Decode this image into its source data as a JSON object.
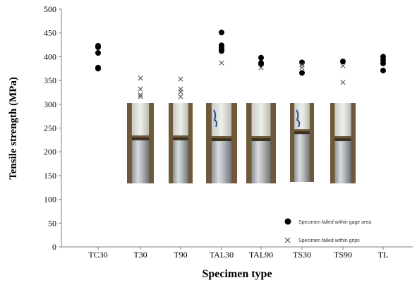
{
  "chart_data": {
    "type": "scatter",
    "xlabel": "Specimen type",
    "ylabel": "Tensile strength (MPa)",
    "ylim": [
      0,
      500
    ],
    "yticks": [
      0,
      50,
      100,
      150,
      200,
      250,
      300,
      350,
      400,
      450,
      500
    ],
    "categories": [
      "TC30",
      "T30",
      "T90",
      "TAL30",
      "TAL90",
      "TS30",
      "TS90",
      "TL"
    ],
    "series": [
      {
        "name": "Specimen failed  within gage area",
        "marker": "circle",
        "color": "#000000",
        "points": [
          {
            "x": "TC30",
            "y": 423
          },
          {
            "x": "TC30",
            "y": 420
          },
          {
            "x": "TC30",
            "y": 408
          },
          {
            "x": "TC30",
            "y": 377
          },
          {
            "x": "TC30",
            "y": 375
          },
          {
            "x": "TAL30",
            "y": 451
          },
          {
            "x": "TAL30",
            "y": 424
          },
          {
            "x": "TAL30",
            "y": 420
          },
          {
            "x": "TAL30",
            "y": 416
          },
          {
            "x": "TAL30",
            "y": 412
          },
          {
            "x": "TAL90",
            "y": 398
          },
          {
            "x": "TAL90",
            "y": 387
          },
          {
            "x": "TAL90",
            "y": 384
          },
          {
            "x": "TS30",
            "y": 388
          },
          {
            "x": "TS30",
            "y": 366
          },
          {
            "x": "TS90",
            "y": 390
          },
          {
            "x": "TL",
            "y": 400
          },
          {
            "x": "TL",
            "y": 393
          },
          {
            "x": "TL",
            "y": 386
          },
          {
            "x": "TL",
            "y": 371
          }
        ]
      },
      {
        "name": "Specimen failed within grips",
        "marker": "x",
        "color": "#555555",
        "points": [
          {
            "x": "T30",
            "y": 355
          },
          {
            "x": "T30",
            "y": 332
          },
          {
            "x": "T30",
            "y": 320
          },
          {
            "x": "T30",
            "y": 316
          },
          {
            "x": "T90",
            "y": 353
          },
          {
            "x": "T90",
            "y": 332
          },
          {
            "x": "T90",
            "y": 326
          },
          {
            "x": "T90",
            "y": 316
          },
          {
            "x": "TAL30",
            "y": 387
          },
          {
            "x": "TAL90",
            "y": 377
          },
          {
            "x": "TS30",
            "y": 383
          },
          {
            "x": "TS30",
            "y": 377
          },
          {
            "x": "TS90",
            "y": 381
          },
          {
            "x": "TS90",
            "y": 346
          }
        ]
      }
    ],
    "legend_position": "bottom-right",
    "grid": false,
    "inset_photos": [
      "T30",
      "T90",
      "TAL30",
      "TAL90",
      "TS30",
      "TS90"
    ]
  }
}
